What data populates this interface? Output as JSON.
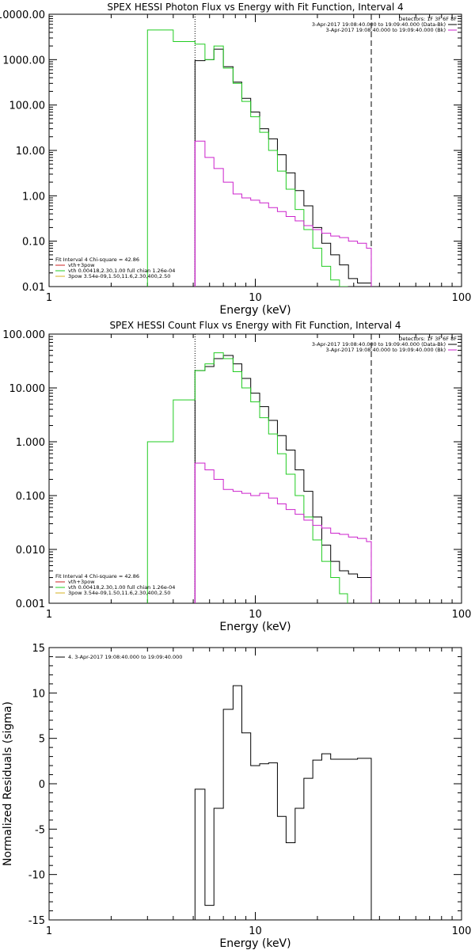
{
  "colors": {
    "background": "#ffffff",
    "axes": "#000000",
    "black": "#000000",
    "green": "#22cc22",
    "magenta": "#cc22cc",
    "orange": "#d4b020",
    "red": "#cc2222"
  },
  "chart_data": [
    {
      "type": "line",
      "title": "SPEX HESSI Photon Flux vs Energy with Fit Function, Interval 4",
      "xlabel": "Energy (keV)",
      "ylabel": "",
      "xscale": "log",
      "yscale": "log",
      "xlim": [
        1,
        100
      ],
      "ylim": [
        0.01,
        10000
      ],
      "x_tick_labels": [
        "1",
        "10",
        "100"
      ],
      "y_tick_labels": [
        "0.01",
        "0.10",
        "1.00",
        "10.00",
        "100.00",
        "1000.00",
        "10000.00"
      ],
      "y_tick_values": [
        0.01,
        0.1,
        1,
        10,
        100,
        1000,
        10000
      ],
      "vlines": [
        {
          "x": 5.1,
          "style": "dotted"
        },
        {
          "x": 36.5,
          "style": "dashed"
        }
      ],
      "legend_top": {
        "header": "Detectors: 1F 3F 6F 8F",
        "entries": [
          {
            "label": "3-Apr-2017 19:08:40.000 to 19:09:40.000 (Data-Bk)",
            "color": "#000000"
          },
          {
            "label": "3-Apr-2017 19:08:40.000 to 19:09:40.000 (Bk)",
            "color": "#cc22cc"
          }
        ]
      },
      "legend_bottom": {
        "header": "Fit Interval 4   Chi-square = 42.86",
        "entries": [
          {
            "label": "vth+3pow",
            "color": "#cc2222"
          },
          {
            "label": "vth 0.00418,2.30,1.00  full chian 1.26e-04",
            "color": "#22cc22"
          },
          {
            "label": "3pow 3.54e-09,1.50,11.6,2.30,400,2.50",
            "color": "#d4b020"
          }
        ]
      },
      "series": [
        {
          "color": "#000000",
          "edges": [
            5.1,
            5.7,
            6.3,
            7,
            7.8,
            8.6,
            9.5,
            10.5,
            11.6,
            12.8,
            14.1,
            15.6,
            17.2,
            19,
            21,
            23.2,
            25.6,
            28.3,
            31.3,
            34.6,
            36.5
          ],
          "values": [
            950,
            1000,
            1700,
            700,
            320,
            140,
            70,
            30,
            18,
            8,
            3.2,
            1.3,
            0.6,
            0.2,
            0.09,
            0.05,
            0.03,
            0.015,
            0.012,
            0.012
          ]
        },
        {
          "color": "#22cc22",
          "edges": [
            3,
            4,
            5.1,
            5.7,
            6.3,
            7,
            7.8,
            8.6,
            9.5,
            10.5,
            11.6,
            12.8,
            14.1,
            15.6,
            17.2,
            19,
            21,
            23.2,
            25.6,
            28
          ],
          "values": [
            4500,
            2500,
            2200,
            1000,
            2000,
            650,
            300,
            120,
            55,
            25,
            10,
            3.5,
            1.4,
            0.5,
            0.18,
            0.07,
            0.028,
            0.014,
            0.01
          ]
        },
        {
          "color": "#cc22cc",
          "edges": [
            5.1,
            5.7,
            6.3,
            7,
            7.8,
            8.6,
            9.5,
            10.5,
            11.6,
            12.8,
            14.1,
            15.6,
            17.2,
            19,
            21,
            23.2,
            25.6,
            28.3,
            31.3,
            34.6,
            36.5
          ],
          "values": [
            16,
            7,
            4,
            2,
            1.1,
            0.9,
            0.8,
            0.7,
            0.55,
            0.45,
            0.35,
            0.28,
            0.22,
            0.18,
            0.15,
            0.13,
            0.12,
            0.1,
            0.09,
            0.07
          ]
        }
      ],
      "vertical_drops": [
        {
          "x": 36.5,
          "from": 0.01,
          "to": 0.07,
          "color": "#cc22cc"
        },
        {
          "x": 5.1,
          "from": 0.01,
          "to": 16,
          "color": "#cc22cc"
        }
      ]
    },
    {
      "type": "line",
      "title": "SPEX HESSI Count Flux vs Energy with Fit Function, Interval 4",
      "xlabel": "Energy (keV)",
      "ylabel": "",
      "xscale": "log",
      "yscale": "log",
      "xlim": [
        1,
        100
      ],
      "ylim": [
        0.001,
        100
      ],
      "x_tick_labels": [
        "1",
        "10",
        "100"
      ],
      "y_tick_labels": [
        "0.001",
        "0.010",
        "0.100",
        "1.000",
        "10.000",
        "100.000"
      ],
      "y_tick_values": [
        0.001,
        0.01,
        0.1,
        1,
        10,
        100
      ],
      "vlines": [
        {
          "x": 5.1,
          "style": "dotted"
        },
        {
          "x": 36.5,
          "style": "dashed"
        }
      ],
      "legend_top": {
        "header": "Detectors: 1F 3F 6F 8F",
        "entries": [
          {
            "label": "3-Apr-2017 19:08:40.000 to 19:09:40.000 (Data-Bk)",
            "color": "#000000"
          },
          {
            "label": "3-Apr-2017 19:08:40.000 to 19:09:40.000 (Bk)",
            "color": "#cc22cc"
          }
        ]
      },
      "legend_bottom": {
        "header": "Fit Interval 4   Chi-square = 42.86",
        "entries": [
          {
            "label": "vth+3pow",
            "color": "#cc2222"
          },
          {
            "label": "vth 0.00418,2.30,1.00  full chian 1.26e-04",
            "color": "#22cc22"
          },
          {
            "label": "3pow 3.54e-09,1.50,11.6,2.30,400,2.50",
            "color": "#d4b020"
          }
        ]
      },
      "series": [
        {
          "color": "#000000",
          "edges": [
            5.1,
            5.7,
            6.3,
            7,
            7.8,
            8.6,
            9.5,
            10.5,
            11.6,
            12.8,
            14.1,
            15.6,
            17.2,
            19,
            21,
            23.2,
            25.6,
            28.3,
            31.3,
            34.6,
            36.5
          ],
          "values": [
            21,
            25,
            35,
            40,
            28,
            15,
            8,
            4.5,
            2.5,
            1.3,
            0.7,
            0.3,
            0.12,
            0.04,
            0.012,
            0.006,
            0.004,
            0.0035,
            0.003,
            0.003
          ]
        },
        {
          "color": "#22cc22",
          "edges": [
            3,
            4,
            5.1,
            5.7,
            6.3,
            7,
            7.8,
            8.6,
            9.5,
            10.5,
            11.6,
            12.8,
            14.1,
            15.6,
            17.2,
            19,
            21,
            23.2,
            25.6,
            28
          ],
          "values": [
            1,
            6,
            21,
            28,
            45,
            35,
            20,
            10,
            5.5,
            2.8,
            1.4,
            0.6,
            0.25,
            0.1,
            0.04,
            0.015,
            0.006,
            0.003,
            0.0015
          ]
        },
        {
          "color": "#cc22cc",
          "edges": [
            5.1,
            5.7,
            6.3,
            7,
            7.8,
            8.6,
            9.5,
            10.5,
            11.6,
            12.8,
            14.1,
            15.6,
            17.2,
            19,
            21,
            23.2,
            25.6,
            28.3,
            31.3,
            34.6,
            36.5
          ],
          "values": [
            0.4,
            0.3,
            0.2,
            0.13,
            0.12,
            0.11,
            0.1,
            0.11,
            0.09,
            0.07,
            0.055,
            0.045,
            0.035,
            0.028,
            0.025,
            0.02,
            0.019,
            0.017,
            0.016,
            0.014
          ]
        }
      ],
      "vertical_drops": [
        {
          "x": 36.5,
          "from": 0.001,
          "to": 0.014,
          "color": "#cc22cc"
        },
        {
          "x": 5.1,
          "from": 0.001,
          "to": 0.4,
          "color": "#cc22cc"
        }
      ]
    },
    {
      "type": "line",
      "title": "",
      "xlabel": "Energy (keV)",
      "ylabel": "Normalized Residuals (sigma)",
      "xscale": "log",
      "yscale": "linear",
      "xlim": [
        1,
        100
      ],
      "ylim": [
        -15,
        15
      ],
      "x_tick_labels": [
        "1",
        "10",
        "100"
      ],
      "y_tick_labels": [
        "-15",
        "-10",
        "-5",
        "0",
        "5",
        "10",
        "15"
      ],
      "y_tick_values": [
        -15,
        -10,
        -5,
        0,
        5,
        10,
        15
      ],
      "legend_top": {
        "header": "",
        "entries": [
          {
            "label": "4.  3-Apr-2017 19:08:40.000 to 19:09:40.000",
            "color": "#000000"
          }
        ]
      },
      "series": [
        {
          "color": "#000000",
          "edges": [
            5.1,
            5.7,
            6.3,
            7,
            7.8,
            8.6,
            9.5,
            10.5,
            11.6,
            12.8,
            14.1,
            15.6,
            17.2,
            19,
            21,
            23.2,
            25.6,
            28.3,
            31.3,
            34.6,
            36.5
          ],
          "values": [
            -0.6,
            -13.4,
            -2.7,
            8.2,
            10.8,
            5.6,
            2,
            2.2,
            2.3,
            -3.6,
            -6.5,
            -2.7,
            0.6,
            2.6,
            3.3,
            2.7,
            2.7,
            2.7,
            2.8,
            2.8
          ],
          "drop_to_bottom": true
        }
      ]
    }
  ]
}
